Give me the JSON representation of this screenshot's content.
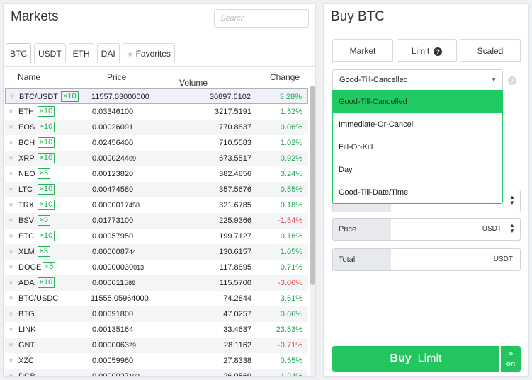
{
  "markets": {
    "title": "Markets",
    "search_placeholder": "Search",
    "tabs": [
      {
        "label": "BTC"
      },
      {
        "label": "USDT"
      },
      {
        "label": "ETH"
      },
      {
        "label": "DAI"
      },
      {
        "label": "Favorites",
        "icon": "star-icon"
      }
    ],
    "active_tab": "BTC",
    "columns": {
      "name": "Name",
      "price": "Price",
      "volume": "Volume (BTC)",
      "change": "Change",
      "sort_icon": "arrow-down-icon"
    },
    "rows": [
      {
        "name": "BTC/USDT",
        "lev": "×10",
        "price": "11557.03000000",
        "price_small": "",
        "volume": "30897.6102",
        "change": "3.28%",
        "dir": "pos"
      },
      {
        "name": "ETH",
        "lev": "×10",
        "price": "0.03346100",
        "price_small": "",
        "volume": "3217.5191",
        "change": "1.52%",
        "dir": "pos"
      },
      {
        "name": "EOS",
        "lev": "×10",
        "price": "0.00026091",
        "price_small": "",
        "volume": "770.8837",
        "change": "0.06%",
        "dir": "pos"
      },
      {
        "name": "BCH",
        "lev": "×10",
        "price": "0.02456400",
        "price_small": "",
        "volume": "710.5583",
        "change": "1.02%",
        "dir": "pos"
      },
      {
        "name": "XRP",
        "lev": "×10",
        "price": "0.0000244",
        "price_small": "09",
        "volume": "673.5517",
        "change": "0.92%",
        "dir": "pos"
      },
      {
        "name": "NEO",
        "lev": "×5",
        "price": "0.00123820",
        "price_small": "",
        "volume": "382.4856",
        "change": "3.24%",
        "dir": "pos"
      },
      {
        "name": "LTC",
        "lev": "×10",
        "price": "0.00474580",
        "price_small": "",
        "volume": "357.5676",
        "change": "0.55%",
        "dir": "pos"
      },
      {
        "name": "TRX",
        "lev": "×10",
        "price": "0.0000017",
        "price_small": "458",
        "volume": "321.6785",
        "change": "0.18%",
        "dir": "pos"
      },
      {
        "name": "BSV",
        "lev": "×5",
        "price": "0.01773100",
        "price_small": "",
        "volume": "225.9366",
        "change": "-1.54%",
        "dir": "neg"
      },
      {
        "name": "ETC",
        "lev": "×10",
        "price": "0.00057950",
        "price_small": "",
        "volume": "199.7127",
        "change": "0.16%",
        "dir": "pos"
      },
      {
        "name": "XLM",
        "lev": "×5",
        "price": "0.0000087",
        "price_small": "44",
        "volume": "130.6157",
        "change": "1.05%",
        "dir": "pos"
      },
      {
        "name": "DOGE",
        "lev": "×5",
        "price": "0.00000030",
        "price_small": "013",
        "volume": "117.8895",
        "change": "0.71%",
        "dir": "pos"
      },
      {
        "name": "ADA",
        "lev": "×10",
        "price": "0.0000115",
        "price_small": "89",
        "volume": "115.5700",
        "change": "-3.06%",
        "dir": "neg"
      },
      {
        "name": "BTC/USDC",
        "lev": "",
        "price": "11555.05964000",
        "price_small": "",
        "volume": "74.2844",
        "change": "3.61%",
        "dir": "pos"
      },
      {
        "name": "BTG",
        "lev": "",
        "price": "0.00091800",
        "price_small": "",
        "volume": "47.0257",
        "change": "0.66%",
        "dir": "pos"
      },
      {
        "name": "LINK",
        "lev": "",
        "price": "0.00135164",
        "price_small": "",
        "volume": "33.4637",
        "change": "23.53%",
        "dir": "pos"
      },
      {
        "name": "GNT",
        "lev": "",
        "price": "0.0000063",
        "price_small": "29",
        "volume": "28.1162",
        "change": "-0.71%",
        "dir": "neg"
      },
      {
        "name": "XZC",
        "lev": "",
        "price": "0.00059960",
        "price_small": "",
        "volume": "27.8338",
        "change": "0.55%",
        "dir": "pos"
      },
      {
        "name": "DGB",
        "lev": "",
        "price": "0.0000027",
        "price_small": "102",
        "volume": "26.0569",
        "change": "1.24%",
        "dir": "pos"
      }
    ]
  },
  "buy": {
    "title": "Buy BTC",
    "tabs": [
      {
        "label": "Market"
      },
      {
        "label": "Limit"
      },
      {
        "label": "Scaled"
      }
    ],
    "active_tab": "Limit",
    "tif_selected": "Good-Till-Cancelled",
    "tif_options": [
      "Good-Till-Cancelled",
      "Immediate-Or-Cancel",
      "Fill-Or-Kill",
      "Day",
      "Good-Till-Date/Time"
    ],
    "price_label": "Price",
    "price_unit": "USDT",
    "total_label": "Total",
    "total_unit": "USDT",
    "buy_label": "Buy",
    "buy_mode": "Limit",
    "toggle_label": "on"
  },
  "colors": {
    "accent": "#22c55e",
    "positive": "#1ba84a",
    "negative": "#e04b4b"
  }
}
